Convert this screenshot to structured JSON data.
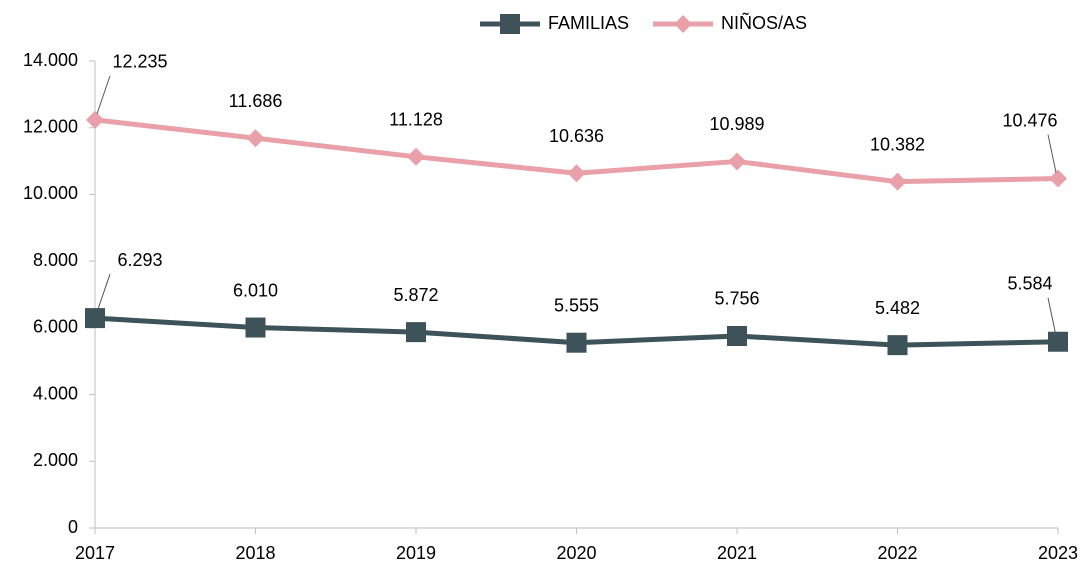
{
  "chart_data": {
    "type": "line",
    "categories": [
      "2017",
      "2018",
      "2019",
      "2020",
      "2021",
      "2022",
      "2023"
    ],
    "series": [
      {
        "name": "FAMILIAS",
        "color": "#3e525a",
        "marker": "square",
        "values": [
          6293,
          6010,
          5872,
          5555,
          5756,
          5482,
          5584
        ],
        "value_labels": [
          "6.293",
          "6.010",
          "5.872",
          "5.555",
          "5.756",
          "5.482",
          "5.584"
        ]
      },
      {
        "name": "NIÑOS/AS",
        "color": "#e9a0a9",
        "marker": "diamond",
        "values": [
          12235,
          11686,
          11128,
          10636,
          10989,
          10382,
          10476
        ],
        "value_labels": [
          "12.235",
          "11.686",
          "11.128",
          "10.636",
          "10.989",
          "10.382",
          "10.476"
        ]
      }
    ],
    "ylim": [
      0,
      14000
    ],
    "yticks": [
      0,
      {
        "value": 2000,
        "label": "2.000"
      },
      {
        "value": 4000,
        "label": "4.000"
      },
      {
        "value": 6000,
        "label": "6.000"
      },
      {
        "value": 8000,
        "label": "8.000"
      },
      {
        "value": 10000,
        "label": "10.000"
      },
      {
        "value": 12000,
        "label": "12.000"
      },
      {
        "value": 14000,
        "label": "14.000"
      }
    ],
    "legend": "top",
    "grid": false
  }
}
